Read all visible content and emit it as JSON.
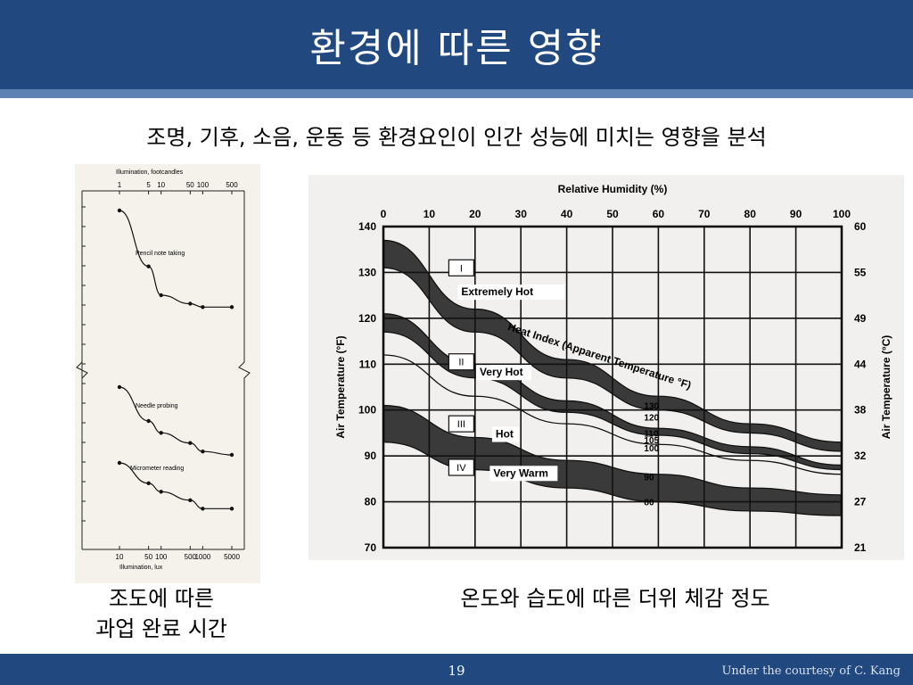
{
  "slide": {
    "title": "환경에 따른 영향",
    "subtitle": "조명, 기후, 소음, 운동 등 환경요인이 인간 성능에 미치는 영향을 분석",
    "caption_left_1": "조도에 따른",
    "caption_left_2": "과업 완료 시간",
    "caption_right": "온도와 습도에 따른 더위 체감 정도",
    "page_number": "19",
    "courtesy": "Under the courtesy of C. Kang"
  },
  "chart_data": [
    {
      "type": "scatter",
      "xlabel_top": "Illumination, footcandles",
      "xlabel_bottom": "Illumination, lux",
      "x_scale": "log",
      "top_ticks": [
        "1",
        "5",
        "10",
        "50",
        "100",
        "500"
      ],
      "top_tick_values": [
        1,
        5,
        10,
        50,
        100,
        500
      ],
      "bottom_ticks": [
        "10",
        "50",
        "100",
        "500",
        "1000",
        "5000"
      ],
      "bottom_tick_values": [
        10,
        50,
        100,
        500,
        1000,
        5000
      ],
      "series": [
        {
          "name": "Pencil note taking",
          "points": [
            [
              10,
              0.0
            ],
            [
              50,
              0.33
            ],
            [
              100,
              0.5
            ],
            [
              500,
              0.55
            ],
            [
              1000,
              0.57
            ],
            [
              5000,
              0.57
            ]
          ]
        },
        {
          "name": "Needle probing",
          "points": [
            [
              10,
              0.0
            ],
            [
              50,
              0.2
            ],
            [
              100,
              0.27
            ],
            [
              500,
              0.33
            ],
            [
              1000,
              0.38
            ],
            [
              5000,
              0.4
            ]
          ]
        },
        {
          "name": "Micrometer reading",
          "points": [
            [
              10,
              0.0
            ],
            [
              50,
              0.12
            ],
            [
              100,
              0.17
            ],
            [
              500,
              0.22
            ],
            [
              1000,
              0.27
            ],
            [
              5000,
              0.27
            ]
          ]
        }
      ]
    },
    {
      "type": "area",
      "xlabel": "Relative Humidity (%)",
      "ylabel": "Air Temperature (°F)",
      "ylabel_right": "Air Temperature (°C)",
      "curve_label": "Heat Index (Apparent Temperature °F)",
      "xlim": [
        0,
        100
      ],
      "ylim": [
        70,
        140
      ],
      "x_ticks": [
        0,
        10,
        20,
        30,
        40,
        50,
        60,
        70,
        80,
        90,
        100
      ],
      "y_ticks": [
        70,
        80,
        90,
        100,
        110,
        120,
        130,
        140
      ],
      "y_ticks_right": [
        "21",
        "27",
        "32",
        "38",
        "44",
        "49",
        "55",
        "60"
      ],
      "zones": [
        {
          "numeral": "I",
          "label": "Extremely Hot"
        },
        {
          "numeral": "II",
          "label": "Very Hot"
        },
        {
          "numeral": "III",
          "label": "Hot"
        },
        {
          "numeral": "IV",
          "label": "Very Warm"
        }
      ],
      "series": [
        {
          "name": "130",
          "values": [
            [
              0,
              137
            ],
            [
              20,
              122
            ],
            [
              40,
              111
            ],
            [
              60,
              103
            ],
            [
              80,
              97
            ],
            [
              100,
              93
            ]
          ]
        },
        {
          "name": "120",
          "values": [
            [
              0,
              131
            ],
            [
              20,
              117
            ],
            [
              40,
              107
            ],
            [
              60,
              100
            ],
            [
              80,
              95
            ],
            [
              100,
              91
            ]
          ]
        },
        {
          "name": "110",
          "values": [
            [
              0,
              121
            ],
            [
              20,
              110
            ],
            [
              40,
              102
            ],
            [
              60,
              96
            ],
            [
              80,
              92
            ],
            [
              100,
              88
            ]
          ]
        },
        {
          "name": "105",
          "values": [
            [
              0,
              117
            ],
            [
              20,
              107
            ],
            [
              40,
              99.5
            ],
            [
              60,
              94.5
            ],
            [
              80,
              90.5
            ],
            [
              100,
              87
            ]
          ]
        },
        {
          "name": "100",
          "values": [
            [
              0,
              112
            ],
            [
              20,
              103
            ],
            [
              40,
              97
            ],
            [
              60,
              92.5
            ],
            [
              80,
              89
            ],
            [
              100,
              86
            ]
          ]
        },
        {
          "name": "90",
          "values": [
            [
              0,
              101
            ],
            [
              20,
              94
            ],
            [
              40,
              89
            ],
            [
              60,
              86
            ],
            [
              80,
              83
            ],
            [
              100,
              81.5
            ]
          ]
        },
        {
          "name": "80",
          "values": [
            [
              0,
              93
            ],
            [
              20,
              87
            ],
            [
              40,
              83
            ],
            [
              60,
              80
            ],
            [
              80,
              78
            ],
            [
              100,
              77
            ]
          ]
        }
      ],
      "shaded_bands": [
        [
          "130",
          "120"
        ],
        [
          "110",
          "105"
        ],
        [
          "90",
          "80"
        ]
      ]
    }
  ]
}
